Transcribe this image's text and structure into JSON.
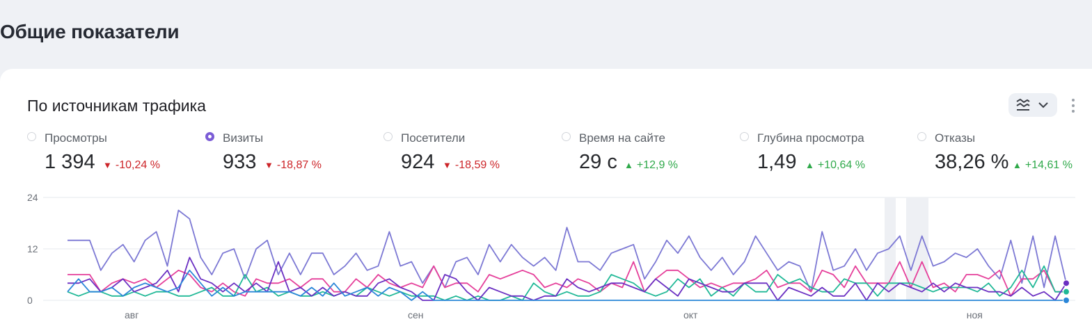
{
  "page_title": "Общие показатели",
  "card": {
    "title": "По источникам трафика",
    "chart_type_icon": "line-chart-icon",
    "dropdown_icon": "chevron-down-icon",
    "more_icon": "kebab-menu-icon"
  },
  "metrics": [
    {
      "label": "Просмотры",
      "value": "1 394",
      "delta": "-10,24 %",
      "trend": "down",
      "selected": false
    },
    {
      "label": "Визиты",
      "value": "933",
      "delta": "-18,87 %",
      "trend": "down",
      "selected": true
    },
    {
      "label": "Посетители",
      "value": "924",
      "delta": "-18,59 %",
      "trend": "down",
      "selected": false
    },
    {
      "label": "Время на сайте",
      "value": "29 с",
      "delta": "+12,9 %",
      "trend": "up",
      "selected": false
    },
    {
      "label": "Глубина просмотра",
      "value": "1,49",
      "delta": "+10,64 %",
      "trend": "up",
      "selected": false
    },
    {
      "label": "Отказы",
      "value": "38,26 %",
      "delta": "+14,61 %",
      "trend": "up",
      "selected": false
    }
  ],
  "colors": {
    "accent": "#7b5cd6",
    "down": "#cc2428",
    "up": "#2fa94a"
  },
  "chart_data": {
    "type": "line",
    "x_start": "2024-07-25",
    "x_end": "2024-11-11",
    "xticks": [
      "авг",
      "сен",
      "окт",
      "ноя"
    ],
    "yticks": [
      "0",
      "12",
      "24"
    ],
    "ylim": [
      0,
      24
    ],
    "grid": true,
    "series": [
      {
        "color": "#7c78d4",
        "values": [
          14,
          14,
          14,
          7,
          11,
          13,
          9,
          14,
          16,
          8,
          21,
          19,
          10,
          6,
          11,
          12,
          5,
          12,
          14,
          6,
          11,
          6,
          11,
          11,
          6,
          8,
          11,
          7,
          8,
          16,
          8,
          9,
          4,
          8,
          3,
          9,
          10,
          6,
          13,
          9,
          13,
          10,
          8,
          10,
          7,
          17,
          9,
          9,
          7,
          11,
          12,
          13,
          5,
          9,
          14,
          11,
          15,
          10,
          7,
          10,
          6,
          9,
          15,
          11,
          7,
          9,
          8,
          2,
          16,
          7,
          8,
          12,
          7,
          11,
          12,
          15,
          7,
          15,
          8,
          9,
          11,
          10,
          12,
          8,
          5,
          14,
          4,
          15,
          3,
          15,
          4
        ]
      },
      {
        "color": "#e53f9a",
        "values": [
          6,
          6,
          6,
          2,
          4,
          5,
          4,
          5,
          3,
          5,
          7,
          6,
          3,
          2,
          4,
          2,
          1,
          5,
          4,
          4,
          5,
          3,
          5,
          5,
          2,
          2,
          5,
          3,
          6,
          4,
          3,
          4,
          3,
          8,
          3,
          4,
          4,
          2,
          6,
          5,
          6,
          7,
          6,
          3,
          4,
          3,
          5,
          4,
          2,
          4,
          3,
          9,
          2,
          5,
          7,
          7,
          5,
          3,
          4,
          3,
          4,
          4,
          5,
          7,
          3,
          4,
          4,
          2,
          7,
          6,
          3,
          8,
          4,
          4,
          4,
          9,
          3,
          9,
          3,
          4,
          2,
          6,
          6,
          5,
          7,
          1,
          5,
          5,
          7,
          2,
          2
        ]
      },
      {
        "color": "#1fb896",
        "values": [
          2,
          1,
          2,
          2,
          1,
          1,
          2,
          1,
          2,
          2,
          1,
          1,
          2,
          3,
          1,
          1,
          6,
          2,
          3,
          1,
          2,
          1,
          1,
          2,
          1,
          2,
          1,
          3,
          2,
          1,
          2,
          1,
          1,
          1,
          0,
          1,
          0,
          1,
          0,
          0,
          1,
          0,
          4,
          2,
          1,
          2,
          1,
          1,
          2,
          6,
          5,
          4,
          2,
          1,
          2,
          5,
          3,
          5,
          1,
          3,
          1,
          4,
          2,
          2,
          6,
          4,
          5,
          3,
          2,
          2,
          5,
          4,
          4,
          1,
          4,
          4,
          4,
          3,
          2,
          3,
          3,
          3,
          2,
          4,
          1,
          3,
          7,
          3,
          8,
          2,
          2
        ]
      },
      {
        "color": "#6a2fc2",
        "values": [
          4,
          4,
          5,
          2,
          3,
          5,
          2,
          3,
          4,
          7,
          2,
          10,
          5,
          4,
          2,
          4,
          2,
          4,
          2,
          9,
          2,
          3,
          1,
          3,
          1,
          2,
          1,
          1,
          4,
          5,
          3,
          2,
          0,
          0,
          6,
          5,
          2,
          0,
          3,
          2,
          1,
          1,
          0,
          1,
          1,
          5,
          3,
          2,
          3,
          4,
          4,
          3,
          2,
          5,
          3,
          1,
          5,
          4,
          3,
          2,
          2,
          4,
          4,
          4,
          0,
          3,
          2,
          1,
          3,
          1,
          1,
          4,
          0,
          4,
          2,
          4,
          3,
          2,
          4,
          2,
          4,
          3,
          3,
          2,
          2,
          1,
          3,
          1,
          2,
          0,
          4
        ]
      },
      {
        "color": "#2a86d8",
        "values": [
          2,
          5,
          2,
          2,
          3,
          1,
          3,
          4,
          3,
          2,
          3,
          7,
          4,
          1,
          3,
          1,
          2,
          2,
          2,
          2,
          2,
          1,
          3,
          1,
          4,
          1,
          2,
          3,
          1,
          3,
          2,
          0,
          2,
          0,
          0,
          0,
          0,
          0,
          0,
          0,
          0,
          0,
          0,
          0,
          0,
          0,
          0,
          0,
          0,
          0,
          0,
          0,
          0,
          0,
          0,
          0,
          0,
          0,
          0,
          0,
          0,
          0,
          0,
          0,
          0,
          0,
          0,
          0,
          0,
          0,
          0,
          0,
          0,
          0,
          0,
          0,
          0,
          0,
          0,
          0,
          0,
          0,
          0,
          0,
          0,
          0,
          0,
          0,
          0,
          0,
          0
        ]
      }
    ]
  }
}
